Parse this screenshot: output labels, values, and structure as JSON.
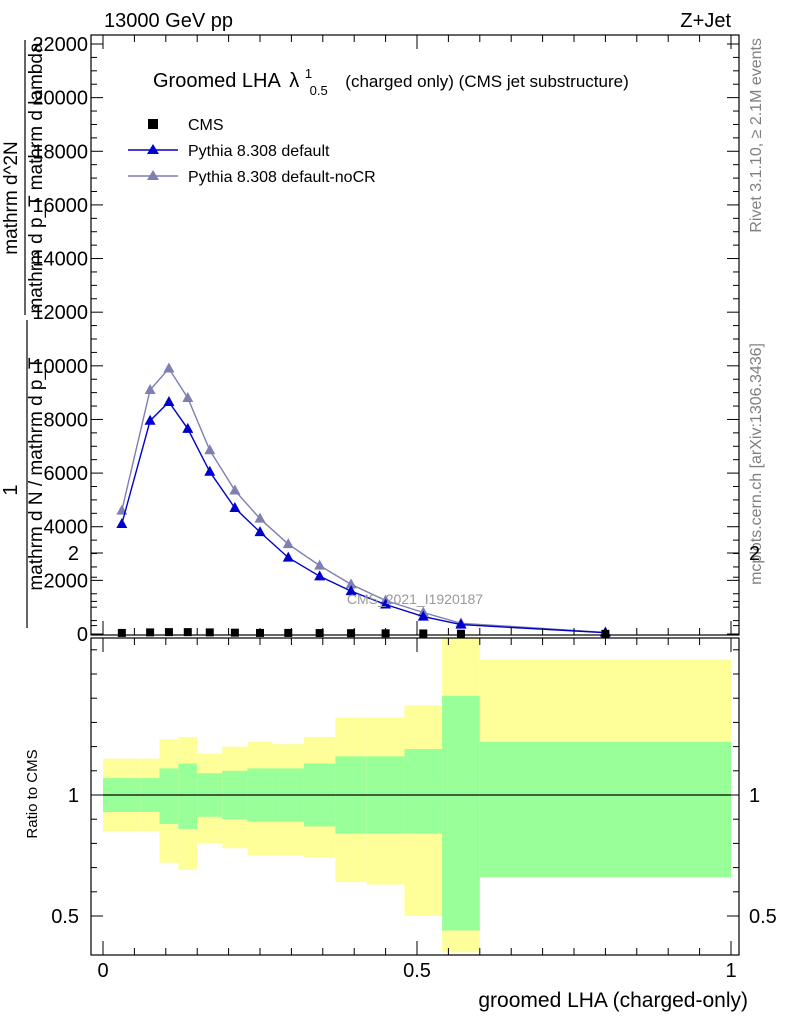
{
  "header": {
    "left": "13000 GeV pp",
    "right": "Z+Jet"
  },
  "side": {
    "rivet": "Rivet 3.1.10, ≥ 2.1M events",
    "mcplots": "mcplots.cern.ch [arXiv:1306.3436]"
  },
  "chart_data": [
    {
      "type": "line",
      "title_main": "Groomed LHA",
      "title_lambda": "λ",
      "title_sup": "1",
      "title_sub": "0.5",
      "title_rest": "(charged only) (CMS jet substructure)",
      "ylabel_parts": [
        "1",
        "mathrm d N / mathrm d p_T",
        "mathrm d^2N",
        "mathrm d p_T mathrm d lambda"
      ],
      "ylim": [
        0,
        22000
      ],
      "yticks": [
        0,
        2000,
        4000,
        6000,
        8000,
        10000,
        12000,
        14000,
        16000,
        18000,
        20000,
        22000
      ],
      "yticklabels": [
        "0",
        "2000",
        "4000",
        "6000",
        "8000",
        "10000",
        "12000",
        "14000",
        "16000",
        "18000",
        "20000",
        "22000"
      ],
      "xlim": [
        0,
        1
      ],
      "watermark": "CMS_2021_I1920187",
      "legend_position": "top-left",
      "legend": [
        {
          "label": "CMS",
          "color": "#000000",
          "marker": "square"
        },
        {
          "label": "Pythia 8.308 default",
          "color": "#0000cc",
          "marker": "triangle"
        },
        {
          "label": "Pythia 8.308 default-noCR",
          "color": "#7f7fb2",
          "marker": "triangle"
        }
      ],
      "x": [
        0.03,
        0.075,
        0.105,
        0.135,
        0.17,
        0.21,
        0.25,
        0.295,
        0.345,
        0.395,
        0.45,
        0.51,
        0.57,
        0.8
      ],
      "series": [
        {
          "name": "CMS",
          "color": "#000000",
          "values": [
            40,
            60,
            70,
            70,
            60,
            50,
            40,
            40,
            35,
            30,
            25,
            20,
            10,
            5
          ]
        },
        {
          "name": "Pythia 8.308 default",
          "color": "#0000cc",
          "values": [
            4100,
            7950,
            8650,
            7650,
            6050,
            4700,
            3800,
            2850,
            2150,
            1600,
            1100,
            650,
            350,
            50
          ]
        },
        {
          "name": "Pythia 8.308 default-noCR",
          "color": "#7f7fb2",
          "values": [
            4600,
            9100,
            9900,
            8800,
            6850,
            5350,
            4300,
            3350,
            2550,
            1850,
            1250,
            800,
            400,
            60
          ]
        }
      ]
    },
    {
      "type": "area",
      "ylabel": "Ratio to CMS",
      "xlabel": "groomed LHA (charged-only)",
      "ylim": [
        0.35,
        2.25
      ],
      "yticks": [
        0.5,
        1,
        2
      ],
      "yticklabels": [
        "0.5",
        "1",
        "2"
      ],
      "xlim": [
        0,
        1
      ],
      "xticks": [
        0,
        0.5,
        1
      ],
      "xticklabels": [
        "0",
        "0.5",
        "1"
      ],
      "bin_edges": [
        0.0,
        0.06,
        0.09,
        0.12,
        0.15,
        0.19,
        0.23,
        0.27,
        0.32,
        0.37,
        0.42,
        0.48,
        0.54,
        0.6,
        1.0
      ],
      "band_inner_color": "#99ff99",
      "band_outer_color": "#ffff99",
      "inner_low": [
        0.93,
        0.93,
        0.88,
        0.86,
        0.91,
        0.9,
        0.89,
        0.89,
        0.87,
        0.84,
        0.84,
        0.84,
        0.44,
        0.66
      ],
      "inner_high": [
        1.07,
        1.07,
        1.11,
        1.13,
        1.09,
        1.1,
        1.11,
        1.11,
        1.13,
        1.16,
        1.16,
        1.19,
        1.41,
        1.22
      ],
      "outer_low": [
        0.85,
        0.85,
        0.72,
        0.69,
        0.8,
        0.78,
        0.75,
        0.75,
        0.74,
        0.64,
        0.63,
        0.5,
        0.35,
        0.66
      ],
      "outer_high": [
        1.15,
        1.15,
        1.23,
        1.24,
        1.17,
        1.2,
        1.22,
        1.21,
        1.24,
        1.32,
        1.32,
        1.37,
        1.82,
        1.56
      ]
    }
  ]
}
